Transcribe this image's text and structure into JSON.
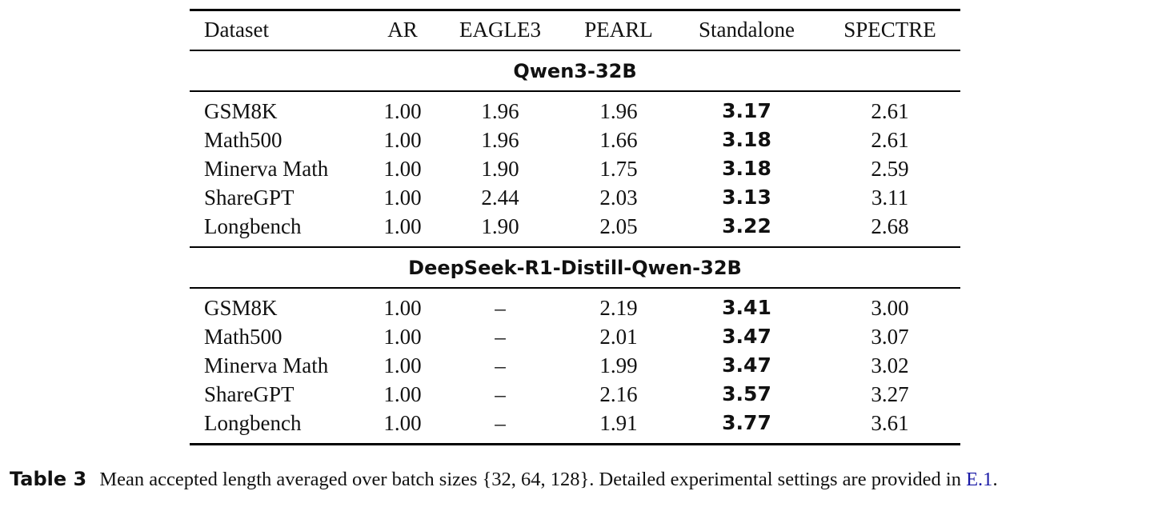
{
  "table": {
    "header": [
      "Dataset",
      "AR",
      "EAGLE3",
      "PEARL",
      "Standalone",
      "SPECTRE"
    ],
    "groups": [
      {
        "title": "Qwen3-32B",
        "rows": [
          [
            "GSM8K",
            "1.00",
            "1.96",
            "1.96",
            "3.17",
            "2.61"
          ],
          [
            "Math500",
            "1.00",
            "1.96",
            "1.66",
            "3.18",
            "2.61"
          ],
          [
            "Minerva Math",
            "1.00",
            "1.90",
            "1.75",
            "3.18",
            "2.59"
          ],
          [
            "ShareGPT",
            "1.00",
            "2.44",
            "2.03",
            "3.13",
            "3.11"
          ],
          [
            "Longbench",
            "1.00",
            "1.90",
            "2.05",
            "3.22",
            "2.68"
          ]
        ]
      },
      {
        "title": "DeepSeek-R1-Distill-Qwen-32B",
        "rows": [
          [
            "GSM8K",
            "1.00",
            "–",
            "2.19",
            "3.41",
            "3.00"
          ],
          [
            "Math500",
            "1.00",
            "–",
            "2.01",
            "3.47",
            "3.07"
          ],
          [
            "Minerva Math",
            "1.00",
            "–",
            "1.99",
            "3.47",
            "3.02"
          ],
          [
            "ShareGPT",
            "1.00",
            "–",
            "2.16",
            "3.57",
            "3.27"
          ],
          [
            "Longbench",
            "1.00",
            "–",
            "1.91",
            "3.77",
            "3.61"
          ]
        ]
      }
    ]
  },
  "caption": {
    "label": "Table 3",
    "text": "Mean accepted length averaged over batch sizes {32, 64, 128}. Detailed experimental settings are provided in",
    "link": "E.1",
    "end": "."
  }
}
